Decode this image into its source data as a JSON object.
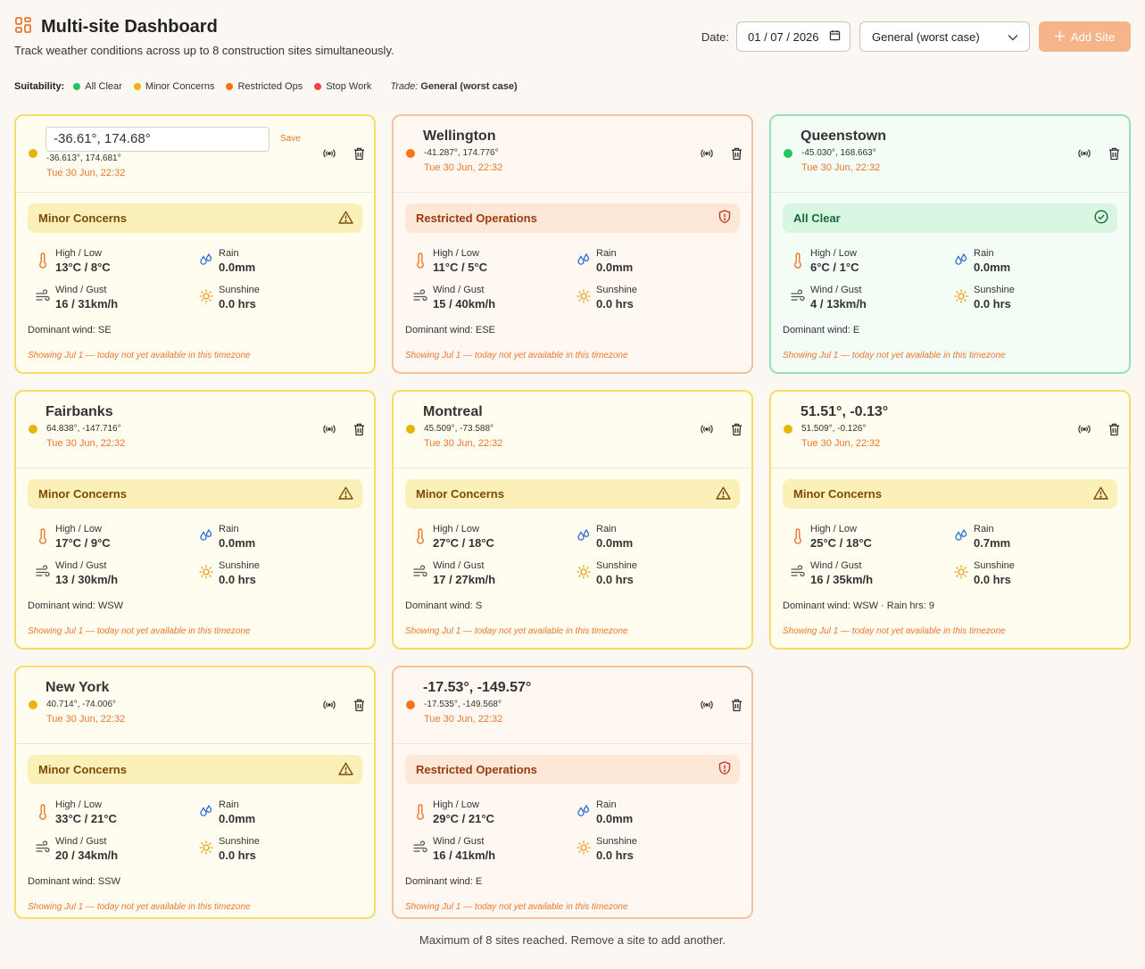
{
  "header": {
    "title": "Multi-site Dashboard",
    "subtitle": "Track weather conditions across up to 8 construction sites simultaneously."
  },
  "controls": {
    "date_label": "Date:",
    "date_value": "01 / 07 / 2026",
    "trade_select": "General (worst case)",
    "add_site_label": "Add Site"
  },
  "legend": {
    "label": "Suitability:",
    "items": [
      {
        "label": "All Clear",
        "color": "#22c55e"
      },
      {
        "label": "Minor Concerns",
        "color": "#eab308"
      },
      {
        "label": "Restricted Ops",
        "color": "#f97316"
      },
      {
        "label": "Stop Work",
        "color": "#ef4444"
      }
    ],
    "trade_label": "Trade:",
    "trade_value": "General (worst case)"
  },
  "labels": {
    "high_low": "High / Low",
    "rain": "Rain",
    "wind_gust": "Wind / Gust",
    "sunshine": "Sunshine",
    "save": "Save"
  },
  "sites": [
    {
      "name": "-36.61°, 174.68°",
      "editing": true,
      "coords": "-36.613°, 174.681°",
      "time": "Tue 30 Jun, 22:32",
      "status": "Minor Concerns",
      "level": "yellow",
      "dot": "#eab308",
      "high_low": "13°C / 8°C",
      "rain": "0.0mm",
      "wind": "16 / 31km/h",
      "sunshine": "0.0 hrs",
      "dominant": "Dominant wind: SE",
      "note": "Showing Jul 1 — today not yet available in this timezone"
    },
    {
      "name": "Wellington",
      "editing": false,
      "coords": "-41.287°, 174.776°",
      "time": "Tue 30 Jun, 22:32",
      "status": "Restricted Operations",
      "level": "orange",
      "dot": "#f97316",
      "high_low": "11°C / 5°C",
      "rain": "0.0mm",
      "wind": "15 / 40km/h",
      "sunshine": "0.0 hrs",
      "dominant": "Dominant wind: ESE",
      "note": "Showing Jul 1 — today not yet available in this timezone"
    },
    {
      "name": "Queenstown",
      "editing": false,
      "coords": "-45.030°, 168.663°",
      "time": "Tue 30 Jun, 22:32",
      "status": "All Clear",
      "level": "green",
      "dot": "#22c55e",
      "high_low": "6°C / 1°C",
      "rain": "0.0mm",
      "wind": "4 / 13km/h",
      "sunshine": "0.0 hrs",
      "dominant": "Dominant wind: E",
      "note": "Showing Jul 1 — today not yet available in this timezone"
    },
    {
      "name": "Fairbanks",
      "editing": false,
      "coords": "64.838°, -147.716°",
      "time": "Tue 30 Jun, 22:32",
      "status": "Minor Concerns",
      "level": "yellow",
      "dot": "#eab308",
      "high_low": "17°C / 9°C",
      "rain": "0.0mm",
      "wind": "13 / 30km/h",
      "sunshine": "0.0 hrs",
      "dominant": "Dominant wind: WSW",
      "note": "Showing Jul 1 — today not yet available in this timezone"
    },
    {
      "name": "Montreal",
      "editing": false,
      "coords": "45.509°, -73.588°",
      "time": "Tue 30 Jun, 22:32",
      "status": "Minor Concerns",
      "level": "yellow",
      "dot": "#eab308",
      "high_low": "27°C / 18°C",
      "rain": "0.0mm",
      "wind": "17 / 27km/h",
      "sunshine": "0.0 hrs",
      "dominant": "Dominant wind: S",
      "note": "Showing Jul 1 — today not yet available in this timezone"
    },
    {
      "name": "51.51°, -0.13°",
      "editing": false,
      "coords": "51.509°, -0.126°",
      "time": "Tue 30 Jun, 22:32",
      "status": "Minor Concerns",
      "level": "yellow",
      "dot": "#eab308",
      "high_low": "25°C / 18°C",
      "rain": "0.7mm",
      "wind": "16 / 35km/h",
      "sunshine": "0.0 hrs",
      "dominant": "Dominant wind: WSW  · Rain hrs: 9",
      "note": "Showing Jul 1 — today not yet available in this timezone"
    },
    {
      "name": "New York",
      "editing": false,
      "coords": "40.714°, -74.006°",
      "time": "Tue 30 Jun, 22:32",
      "status": "Minor Concerns",
      "level": "yellow",
      "dot": "#eab308",
      "high_low": "33°C / 21°C",
      "rain": "0.0mm",
      "wind": "20 / 34km/h",
      "sunshine": "0.0 hrs",
      "dominant": "Dominant wind: SSW",
      "note": "Showing Jul 1 — today not yet available in this timezone"
    },
    {
      "name": "-17.53°, -149.57°",
      "editing": false,
      "coords": "-17.535°, -149.568°",
      "time": "Tue 30 Jun, 22:32",
      "status": "Restricted Operations",
      "level": "orange",
      "dot": "#f97316",
      "high_low": "29°C / 21°C",
      "rain": "0.0mm",
      "wind": "16 / 41km/h",
      "sunshine": "0.0 hrs",
      "dominant": "Dominant wind: E",
      "note": "Showing Jul 1 — today not yet available in this timezone"
    }
  ],
  "footer": "Maximum of 8 sites reached. Remove a site to add another."
}
